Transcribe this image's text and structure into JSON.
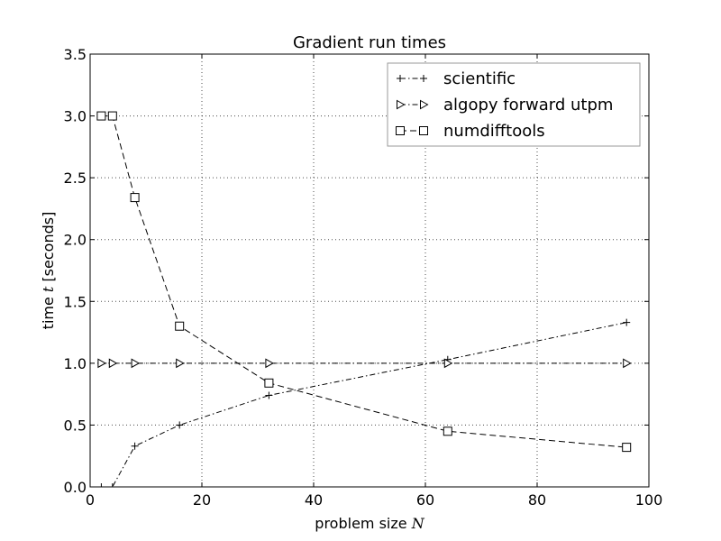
{
  "chart_data": {
    "type": "line",
    "title": "Gradient run times",
    "xlabel_text": "problem size ",
    "xlabel_var": "N",
    "ylabel_text": "time ",
    "ylabel_var": "t",
    "ylabel_unit": " [seconds]",
    "xlim": [
      0,
      100
    ],
    "ylim": [
      0,
      3.5
    ],
    "xticks": [
      0,
      20,
      40,
      60,
      80,
      100
    ],
    "xtick_labels": [
      "0",
      "20",
      "40",
      "60",
      "80",
      "100"
    ],
    "yticks": [
      0,
      0.5,
      1,
      1.5,
      2,
      2.5,
      3,
      3.5
    ],
    "ytick_labels": [
      "0.0",
      "0.5",
      "1.0",
      "1.5",
      "2.0",
      "2.5",
      "3.0",
      "3.5"
    ],
    "grid": true,
    "legend_position": "top-right",
    "series": [
      {
        "name": "scientific",
        "marker": "plus",
        "linestyle": "dashdot",
        "x": [
          2,
          4,
          8,
          16,
          32,
          64,
          96
        ],
        "y": [
          0.0,
          0.0,
          0.33,
          0.5,
          0.74,
          1.03,
          1.33
        ]
      },
      {
        "name": "algopy forward utpm",
        "marker": "triangle-right",
        "linestyle": "dashdot",
        "x": [
          2,
          4,
          8,
          16,
          32,
          64,
          96
        ],
        "y": [
          1.0,
          1.0,
          1.0,
          1.0,
          1.0,
          1.0,
          1.0
        ]
      },
      {
        "name": "numdifftools",
        "marker": "square",
        "linestyle": "dashed",
        "x": [
          2,
          4,
          8,
          16,
          32,
          64,
          96
        ],
        "y": [
          3.0,
          3.0,
          2.34,
          1.3,
          0.84,
          0.45,
          0.32
        ]
      }
    ]
  }
}
